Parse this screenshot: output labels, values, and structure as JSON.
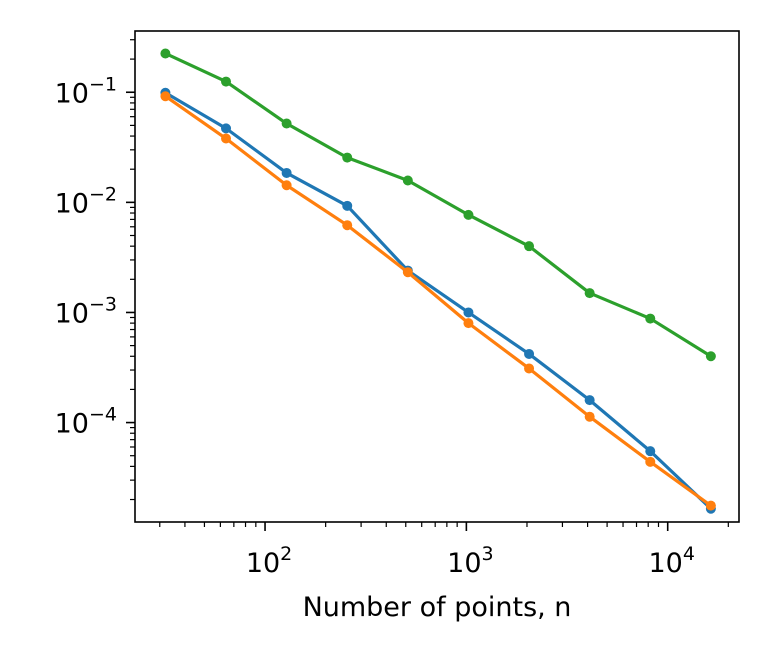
{
  "chart_data": {
    "type": "line",
    "title": "",
    "xlabel": "Number of points, n",
    "ylabel": "",
    "xscale": "log",
    "yscale": "log",
    "xlim": [
      22.6,
      22600
    ],
    "ylim": [
      1.25e-05,
      0.36
    ],
    "grid": false,
    "legend": "none",
    "x": [
      32,
      64,
      128,
      256,
      512,
      1024,
      2048,
      4096,
      8192,
      16384
    ],
    "series": [
      {
        "color": "#1f77b4",
        "values": [
          0.099,
          0.047,
          0.0185,
          0.0093,
          0.0024,
          0.001,
          0.00042,
          0.00016,
          5.5e-05,
          1.65e-05
        ]
      },
      {
        "color": "#ff7f0e",
        "values": [
          0.092,
          0.038,
          0.0143,
          0.0062,
          0.00232,
          0.0008,
          0.00031,
          0.000113,
          4.4e-05,
          1.76e-05
        ]
      },
      {
        "color": "#2ca02c",
        "values": [
          0.225,
          0.125,
          0.052,
          0.0255,
          0.0158,
          0.0077,
          0.004,
          0.0015,
          0.00088,
          0.0004
        ]
      }
    ],
    "x_tick_labels": [
      {
        "value": 100,
        "base": "10",
        "exp": "2"
      },
      {
        "value": 1000,
        "base": "10",
        "exp": "3"
      },
      {
        "value": 10000,
        "base": "10",
        "exp": "4"
      }
    ],
    "y_tick_labels": [
      {
        "value": 0.1,
        "base": "10",
        "exp": "−1"
      },
      {
        "value": 0.01,
        "base": "10",
        "exp": "−2"
      },
      {
        "value": 0.001,
        "base": "10",
        "exp": "−3"
      },
      {
        "value": 0.0001,
        "base": "10",
        "exp": "−4"
      }
    ]
  }
}
